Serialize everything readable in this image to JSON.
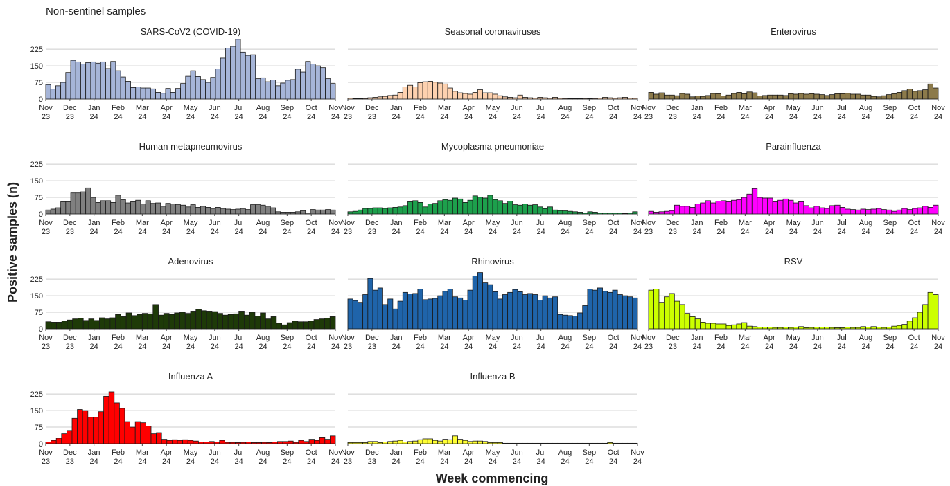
{
  "figure_title": "Non-sentinel samples",
  "ylabel": "Positive samples (n)",
  "xlabel": "Week commencing",
  "grid": "horizontal",
  "chart_data": [
    {
      "type": "bar",
      "title": "SARS-CoV2 (COVID-19)",
      "color": "#A6B5D8",
      "ylim": [
        0,
        260
      ],
      "yticks": [
        0,
        75,
        150,
        225
      ],
      "values": [
        65,
        45,
        60,
        75,
        120,
        175,
        168,
        158,
        165,
        168,
        162,
        168,
        138,
        170,
        128,
        100,
        80,
        52,
        55,
        50,
        50,
        46,
        30,
        26,
        48,
        30,
        48,
        70,
        103,
        128,
        102,
        88,
        75,
        98,
        136,
        185,
        230,
        238,
        270,
        212,
        197,
        200,
        92,
        96,
        78,
        86,
        60,
        72,
        85,
        88,
        135,
        122,
        170,
        158,
        150,
        142,
        92,
        70
      ]
    },
    {
      "type": "bar",
      "title": "Seasonal coronaviruses",
      "color": "#FDD1AF",
      "ylim": [
        0,
        260
      ],
      "yticks": [
        0,
        75,
        150,
        225
      ],
      "values": [
        5,
        2,
        2,
        3,
        6,
        8,
        10,
        12,
        16,
        18,
        30,
        55,
        62,
        55,
        74,
        78,
        80,
        76,
        72,
        68,
        50,
        35,
        28,
        25,
        22,
        30,
        42,
        28,
        28,
        22,
        15,
        10,
        8,
        6,
        18,
        8,
        6,
        5,
        8,
        6,
        4,
        8,
        4,
        3,
        2,
        2,
        2,
        3,
        2,
        3,
        5,
        8,
        6,
        4,
        6,
        8,
        5,
        4
      ]
    },
    {
      "type": "bar",
      "title": "Enterovirus",
      "color": "#8C7A4B",
      "ylim": [
        0,
        260
      ],
      "yticks": [
        0,
        75,
        150,
        225
      ],
      "values": [
        30,
        22,
        28,
        18,
        18,
        15,
        25,
        22,
        10,
        14,
        12,
        16,
        25,
        24,
        14,
        18,
        25,
        30,
        24,
        32,
        28,
        14,
        16,
        18,
        18,
        18,
        16,
        24,
        22,
        25,
        22,
        24,
        22,
        20,
        16,
        20,
        24,
        24,
        26,
        22,
        22,
        18,
        18,
        12,
        10,
        15,
        20,
        24,
        30,
        38,
        45,
        35,
        38,
        42,
        68,
        50
      ]
    },
    {
      "type": "bar",
      "title": "Human metapneumovirus",
      "color": "#808080",
      "ylim": [
        0,
        260
      ],
      "yticks": [
        0,
        75,
        150,
        225
      ],
      "values": [
        18,
        22,
        28,
        55,
        55,
        95,
        95,
        100,
        118,
        75,
        52,
        60,
        60,
        52,
        85,
        65,
        50,
        55,
        62,
        45,
        60,
        48,
        50,
        35,
        48,
        45,
        42,
        40,
        32,
        42,
        30,
        35,
        30,
        25,
        30,
        25,
        22,
        20,
        22,
        25,
        20,
        42,
        42,
        40,
        35,
        28,
        10,
        8,
        8,
        8,
        10,
        15,
        5,
        20,
        18,
        18,
        20,
        18
      ]
    },
    {
      "type": "bar",
      "title": "Mycoplasma pneumoniae",
      "color": "#1DA04C",
      "ylim": [
        0,
        260
      ],
      "yticks": [
        0,
        75,
        150,
        225
      ],
      "values": [
        10,
        12,
        18,
        25,
        25,
        28,
        28,
        25,
        28,
        30,
        32,
        38,
        55,
        60,
        52,
        32,
        45,
        48,
        60,
        65,
        62,
        72,
        68,
        52,
        62,
        82,
        76,
        72,
        85,
        65,
        60,
        48,
        58,
        42,
        40,
        45,
        40,
        42,
        32,
        24,
        32,
        18,
        15,
        14,
        12,
        10,
        8,
        5,
        10,
        8,
        5,
        5,
        5,
        5,
        5,
        2,
        5,
        10
      ]
    },
    {
      "type": "bar",
      "title": "Parainfluenza",
      "color": "#FF00FF",
      "ylim": [
        0,
        260
      ],
      "yticks": [
        0,
        75,
        150,
        225
      ],
      "values": [
        12,
        8,
        10,
        12,
        15,
        40,
        35,
        35,
        30,
        45,
        50,
        60,
        50,
        58,
        60,
        55,
        62,
        65,
        75,
        90,
        115,
        75,
        72,
        72,
        55,
        62,
        68,
        62,
        50,
        55,
        38,
        28,
        35,
        28,
        25,
        38,
        40,
        30,
        22,
        20,
        18,
        22,
        20,
        22,
        25,
        20,
        18,
        12,
        18,
        25,
        20,
        25,
        28,
        35,
        30,
        40
      ]
    },
    {
      "type": "bar",
      "title": "Adenovirus",
      "color": "#1E3A08",
      "ylim": [
        0,
        260
      ],
      "yticks": [
        0,
        75,
        150,
        225
      ],
      "values": [
        32,
        30,
        30,
        35,
        40,
        45,
        48,
        38,
        45,
        38,
        50,
        45,
        50,
        65,
        55,
        72,
        60,
        65,
        70,
        68,
        110,
        62,
        70,
        65,
        72,
        75,
        70,
        80,
        88,
        82,
        80,
        78,
        70,
        62,
        65,
        68,
        80,
        62,
        75,
        58,
        72,
        45,
        55,
        25,
        18,
        28,
        35,
        32,
        32,
        35,
        42,
        45,
        48,
        55
      ]
    },
    {
      "type": "bar",
      "title": "Rhinovirus",
      "color": "#1F64AA",
      "ylim": [
        0,
        260
      ],
      "yticks": [
        0,
        75,
        150,
        225
      ],
      "values": [
        135,
        128,
        120,
        155,
        228,
        175,
        185,
        110,
        135,
        90,
        125,
        165,
        158,
        160,
        180,
        132,
        135,
        138,
        150,
        170,
        180,
        145,
        140,
        130,
        175,
        240,
        255,
        208,
        200,
        168,
        135,
        155,
        165,
        178,
        168,
        155,
        160,
        155,
        130,
        150,
        140,
        145,
        65,
        62,
        60,
        58,
        72,
        105,
        180,
        175,
        185,
        170,
        165,
        175,
        155,
        150,
        145,
        140
      ]
    },
    {
      "type": "bar",
      "title": "RSV",
      "color": "#CCFF00",
      "ylim": [
        0,
        260
      ],
      "yticks": [
        0,
        75,
        150,
        225
      ],
      "values": [
        175,
        180,
        120,
        145,
        160,
        125,
        110,
        70,
        55,
        45,
        30,
        25,
        25,
        22,
        22,
        15,
        18,
        22,
        28,
        12,
        10,
        8,
        8,
        8,
        6,
        6,
        8,
        6,
        8,
        10,
        5,
        6,
        8,
        8,
        8,
        6,
        5,
        5,
        8,
        6,
        6,
        10,
        8,
        10,
        8,
        6,
        8,
        12,
        15,
        20,
        35,
        50,
        75,
        110,
        165,
        155
      ]
    },
    {
      "type": "bar",
      "title": "Influenza A",
      "color": "#FF0000",
      "ylim": [
        0,
        260
      ],
      "yticks": [
        0,
        75,
        150,
        225
      ],
      "values": [
        8,
        15,
        25,
        45,
        60,
        115,
        155,
        150,
        120,
        120,
        145,
        215,
        235,
        185,
        160,
        100,
        75,
        100,
        95,
        80,
        45,
        50,
        20,
        15,
        18,
        15,
        18,
        15,
        12,
        8,
        8,
        10,
        8,
        15,
        6,
        6,
        5,
        6,
        8,
        5,
        5,
        6,
        5,
        8,
        10,
        10,
        12,
        6,
        15,
        10,
        20,
        15,
        30,
        20,
        35
      ]
    },
    {
      "type": "bar",
      "title": "Influenza B",
      "color": "#FFFF33",
      "ylim": [
        0,
        260
      ],
      "yticks": [
        0,
        75,
        150,
        225
      ],
      "values": [
        5,
        5,
        5,
        5,
        10,
        10,
        5,
        8,
        10,
        12,
        15,
        8,
        10,
        12,
        18,
        22,
        22,
        15,
        12,
        20,
        18,
        35,
        20,
        15,
        10,
        12,
        12,
        10,
        5,
        5,
        5,
        2,
        2,
        2,
        2,
        2,
        2,
        2,
        2,
        2,
        2,
        2,
        2,
        2,
        2,
        2,
        2,
        2,
        2,
        2,
        2,
        2,
        5,
        2,
        2,
        2,
        2,
        2
      ]
    }
  ],
  "x_ticks": {
    "months": [
      "Nov",
      "Dec",
      "Jan",
      "Feb",
      "Mar",
      "Apr",
      "May",
      "Jun",
      "Jul",
      "Aug",
      "Sep",
      "Oct",
      "Nov"
    ],
    "years": [
      "23",
      "23",
      "24",
      "24",
      "24",
      "24",
      "24",
      "24",
      "24",
      "24",
      "24",
      "24",
      "24"
    ]
  }
}
